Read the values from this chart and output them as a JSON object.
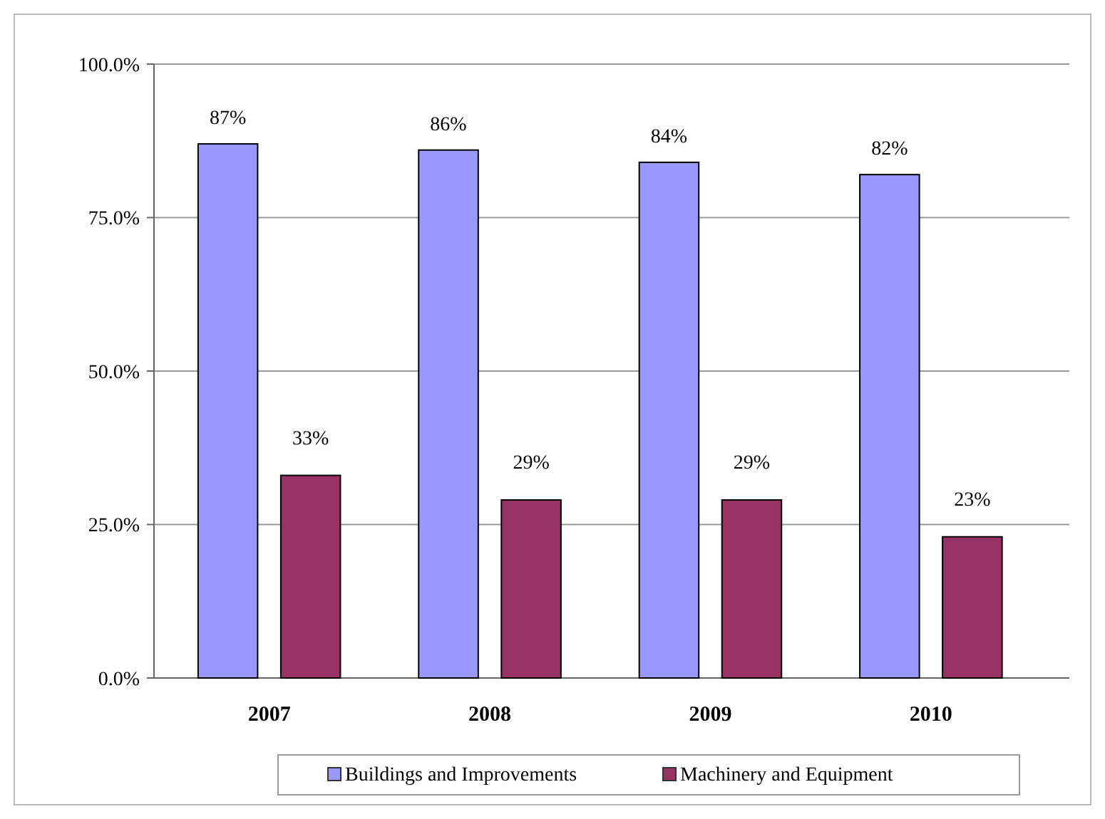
{
  "chart_data": {
    "type": "bar",
    "categories": [
      "2007",
      "2008",
      "2009",
      "2010"
    ],
    "series": [
      {
        "name": "Buildings and Improvements",
        "color": "#9999ff",
        "values": [
          87,
          86,
          84,
          82
        ],
        "value_labels": [
          "87%",
          "86%",
          "84%",
          "82%"
        ]
      },
      {
        "name": "Machinery and Equipment",
        "color": "#993366",
        "values": [
          33,
          29,
          29,
          23
        ],
        "value_labels": [
          "33%",
          "29%",
          "29%",
          "23%"
        ]
      }
    ],
    "ylim": [
      0,
      100
    ],
    "yticks": [
      {
        "value": 0,
        "label": "0.0%"
      },
      {
        "value": 25,
        "label": "25.0%"
      },
      {
        "value": 50,
        "label": "50.0%"
      },
      {
        "value": 75,
        "label": "75.0%"
      },
      {
        "value": 100,
        "label": "100.0%"
      }
    ],
    "grid": "y",
    "legend": "bottom"
  }
}
